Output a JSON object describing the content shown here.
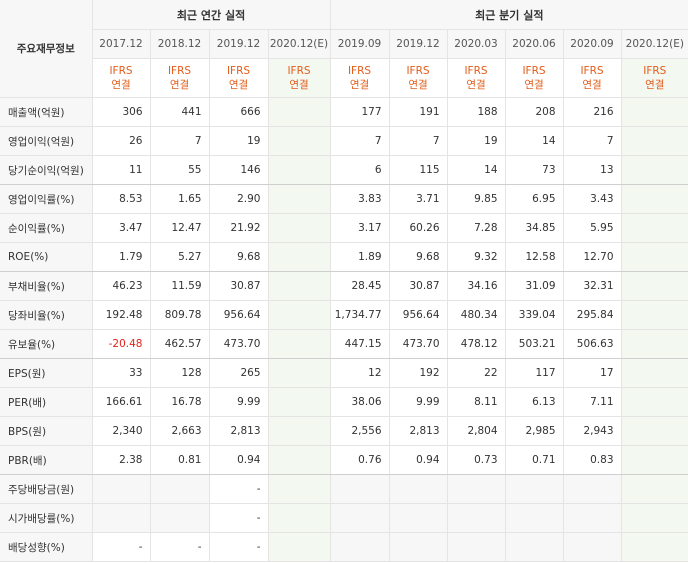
{
  "table": {
    "header_label": "주요재무정보",
    "group_annual": "최근 연간 실적",
    "group_quarter": "최근 분기 실적",
    "annual_periods": [
      "2017.12",
      "2018.12",
      "2019.12",
      "2020.12(E)"
    ],
    "quarter_periods": [
      "2019.09",
      "2019.12",
      "2020.03",
      "2020.06",
      "2020.09",
      "2020.12(E)"
    ],
    "ifrs_line1": "IFRS",
    "ifrs_line2": "연결",
    "rows": [
      {
        "label": "매출액(억원)",
        "annual": [
          "306",
          "441",
          "666",
          ""
        ],
        "quarter": [
          "177",
          "191",
          "188",
          "208",
          "216",
          ""
        ]
      },
      {
        "label": "영업이익(억원)",
        "annual": [
          "26",
          "7",
          "19",
          ""
        ],
        "quarter": [
          "7",
          "7",
          "19",
          "14",
          "7",
          ""
        ]
      },
      {
        "label": "당기순이익(억원)",
        "annual": [
          "11",
          "55",
          "146",
          ""
        ],
        "quarter": [
          "6",
          "115",
          "14",
          "73",
          "13",
          ""
        ]
      },
      {
        "label": "영업이익률(%)",
        "annual": [
          "8.53",
          "1.65",
          "2.90",
          ""
        ],
        "quarter": [
          "3.83",
          "3.71",
          "9.85",
          "6.95",
          "3.43",
          ""
        ]
      },
      {
        "label": "순이익률(%)",
        "annual": [
          "3.47",
          "12.47",
          "21.92",
          ""
        ],
        "quarter": [
          "3.17",
          "60.26",
          "7.28",
          "34.85",
          "5.95",
          ""
        ]
      },
      {
        "label": "ROE(%)",
        "annual": [
          "1.79",
          "5.27",
          "9.68",
          ""
        ],
        "quarter": [
          "1.89",
          "9.68",
          "9.32",
          "12.58",
          "12.70",
          ""
        ]
      },
      {
        "label": "부채비율(%)",
        "annual": [
          "46.23",
          "11.59",
          "30.87",
          ""
        ],
        "quarter": [
          "28.45",
          "30.87",
          "34.16",
          "31.09",
          "32.31",
          ""
        ]
      },
      {
        "label": "당좌비율(%)",
        "annual": [
          "192.48",
          "809.78",
          "956.64",
          ""
        ],
        "quarter": [
          "1,734.77",
          "956.64",
          "480.34",
          "339.04",
          "295.84",
          ""
        ]
      },
      {
        "label": "유보율(%)",
        "annual": [
          "-20.48",
          "462.57",
          "473.70",
          ""
        ],
        "quarter": [
          "447.15",
          "473.70",
          "478.12",
          "503.21",
          "506.63",
          ""
        ]
      },
      {
        "label": "EPS(원)",
        "annual": [
          "33",
          "128",
          "265",
          ""
        ],
        "quarter": [
          "12",
          "192",
          "22",
          "117",
          "17",
          ""
        ]
      },
      {
        "label": "PER(배)",
        "annual": [
          "166.61",
          "16.78",
          "9.99",
          ""
        ],
        "quarter": [
          "38.06",
          "9.99",
          "8.11",
          "6.13",
          "7.11",
          ""
        ]
      },
      {
        "label": "BPS(원)",
        "annual": [
          "2,340",
          "2,663",
          "2,813",
          ""
        ],
        "quarter": [
          "2,556",
          "2,813",
          "2,804",
          "2,985",
          "2,943",
          ""
        ]
      },
      {
        "label": "PBR(배)",
        "annual": [
          "2.38",
          "0.81",
          "0.94",
          ""
        ],
        "quarter": [
          "0.76",
          "0.94",
          "0.73",
          "0.71",
          "0.83",
          ""
        ]
      },
      {
        "label": "주당배당금(원)",
        "annual": [
          "",
          "",
          "-",
          ""
        ],
        "quarter": [
          "",
          "",
          "",
          "",
          "",
          ""
        ]
      },
      {
        "label": "시가배당률(%)",
        "annual": [
          "",
          "",
          "-",
          ""
        ],
        "quarter": [
          "",
          "",
          "",
          "",
          "",
          ""
        ]
      },
      {
        "label": "배당성향(%)",
        "annual": [
          "-",
          "-",
          "-",
          ""
        ],
        "quarter": [
          "",
          "",
          "",
          "",
          "",
          ""
        ]
      }
    ]
  },
  "colors": {
    "ifrs_text": "#e25c1a",
    "negative_text": "#e2231a",
    "estimate_bg": "#f3f9f0",
    "header_bg": "#f7f7f7"
  }
}
